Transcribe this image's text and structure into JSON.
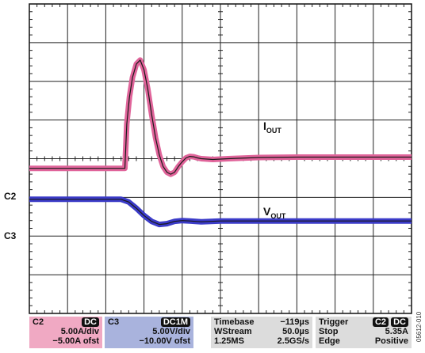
{
  "chart_data": {
    "type": "line",
    "grid": {
      "x_divisions": 10,
      "y_divisions": 8,
      "x_per_div_us": 50.0
    },
    "x_range_div": [
      0,
      10
    ],
    "y_range_div": [
      -4,
      4
    ],
    "series": [
      {
        "name": "IOUT",
        "channel": "C2",
        "color": "#e0649a",
        "x_div": [
          0,
          2.5,
          2.55,
          2.62,
          2.7,
          2.8,
          2.9,
          3.0,
          3.1,
          3.2,
          3.3,
          3.4,
          3.5,
          3.6,
          3.7,
          3.8,
          3.9,
          4.0,
          4.1,
          4.2,
          4.3,
          4.4,
          4.5,
          4.8,
          5.2,
          6.0,
          7.0,
          8.0,
          9.0,
          10.0
        ],
        "y_div": [
          -0.25,
          -0.25,
          0.9,
          1.6,
          2.1,
          2.45,
          2.55,
          2.3,
          1.8,
          1.15,
          0.55,
          0.1,
          -0.2,
          -0.35,
          -0.4,
          -0.35,
          -0.2,
          -0.08,
          0.02,
          0.06,
          0.05,
          0.02,
          0.0,
          -0.02,
          0.0,
          0.03,
          0.04,
          0.04,
          0.04,
          0.04
        ]
      },
      {
        "name": "VOUT",
        "channel": "C3",
        "color": "#3b3bc8",
        "x_div": [
          0,
          2.4,
          2.6,
          2.8,
          3.0,
          3.2,
          3.4,
          3.6,
          3.8,
          4.0,
          4.2,
          4.5,
          5.0,
          6.0,
          7.0,
          8.0,
          9.0,
          10.0
        ],
        "y_div": [
          -1.05,
          -1.05,
          -1.12,
          -1.28,
          -1.47,
          -1.62,
          -1.7,
          -1.68,
          -1.62,
          -1.6,
          -1.61,
          -1.63,
          -1.61,
          -1.61,
          -1.61,
          -1.61,
          -1.61,
          -1.61
        ]
      }
    ],
    "annotations": [
      {
        "text_main": "I",
        "text_sub": "OUT"
      },
      {
        "text_main": "V",
        "text_sub": "OUT"
      }
    ],
    "channel_markers": [
      "C2",
      "C3"
    ]
  },
  "panels": {
    "c2": {
      "channel": "C2",
      "coupling": "DC",
      "scale": "5.00A/div",
      "offset": "−5.00A ofst",
      "color": "#f0a9c3"
    },
    "c3": {
      "channel": "C3",
      "coupling": "DC1M",
      "scale": "5.00V/div",
      "offset": "−10.00V ofst",
      "color": "#a9b3dd"
    },
    "timebase": {
      "label": "Timebase",
      "delay": "−119µs",
      "mode": "WStream",
      "per_div": "50.0µs",
      "samples": "1.25MS",
      "rate": "2.5GS/s"
    },
    "trigger": {
      "label": "Trigger",
      "source": "C2",
      "coupling": "DC",
      "state": "Stop",
      "level": "5.35A",
      "type": "Edge",
      "slope": "Positive"
    }
  },
  "figure_id": "05612-010"
}
